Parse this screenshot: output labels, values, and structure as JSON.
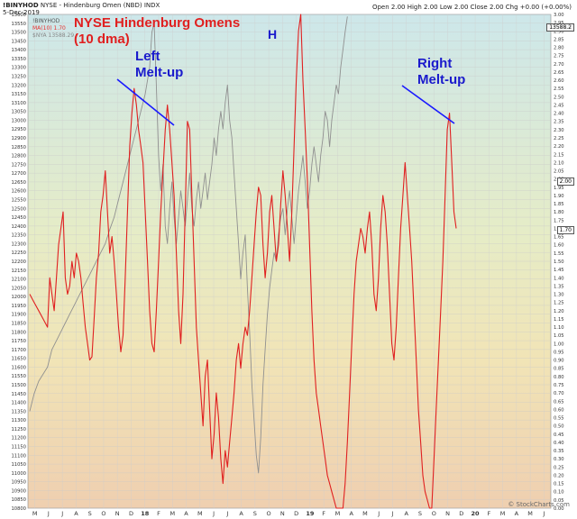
{
  "header": {
    "symbol": "!BINYHOD",
    "desc": "NYSE - Hindenburg Omen (NBD) INDX",
    "date": "5-Dec-2019",
    "ohlc": "Open 2.00  High 2.00  Low 2.00  Close 2.00  Chg +0.00 (+0.00%)",
    "watermark": "© StockCharts.com"
  },
  "legend": [
    {
      "text": "!BINYHOD",
      "color": "#555555"
    },
    {
      "text": "MA(10) 1.70",
      "color": "#e83030"
    },
    {
      "text": "$NYA 13588.29",
      "color": "#888888"
    }
  ],
  "tags": {
    "left_right": "13588.2",
    "right_2": "2.00",
    "right_170": "1.70"
  },
  "annotations": {
    "title": "NYSE Hindenburg Omens",
    "subtitle": "(10 dma)",
    "left_label_1": "Left",
    "left_label_2": "Melt-up",
    "h_label": "H",
    "right_label_1": "Right",
    "right_label_2": "Melt-up"
  },
  "chart_data": {
    "type": "line",
    "x_tick_labels": [
      "M",
      "J",
      "J",
      "A",
      "S",
      "O",
      "N",
      "D",
      "18",
      "F",
      "M",
      "A",
      "M",
      "J",
      "J",
      "A",
      "S",
      "O",
      "N",
      "D",
      "19",
      "F",
      "M",
      "A",
      "M",
      "J",
      "J",
      "A",
      "S",
      "O",
      "N",
      "D",
      "20",
      "F",
      "M",
      "A",
      "M",
      "J"
    ],
    "left_axis": {
      "min": 10800,
      "max": 13600,
      "step": 50
    },
    "right_axis": {
      "min": 0.0,
      "max": 3.0,
      "step": 0.05
    },
    "series": [
      {
        "name": "MA(10) 1.70",
        "color": "#e02020",
        "axis": "right",
        "points": [
          [
            0,
            1.3
          ],
          [
            2,
            1.25
          ],
          [
            4,
            1.2
          ],
          [
            6,
            1.15
          ],
          [
            8,
            1.1
          ],
          [
            9,
            1.4
          ],
          [
            10,
            1.3
          ],
          [
            11,
            1.2
          ],
          [
            12,
            1.4
          ],
          [
            13,
            1.6
          ],
          [
            14,
            1.7
          ],
          [
            15,
            1.8
          ],
          [
            16,
            1.4
          ],
          [
            17,
            1.3
          ],
          [
            18,
            1.35
          ],
          [
            19,
            1.5
          ],
          [
            20,
            1.4
          ],
          [
            21,
            1.55
          ],
          [
            22,
            1.5
          ],
          [
            23,
            1.4
          ],
          [
            24,
            1.25
          ],
          [
            25,
            1.1
          ],
          [
            26,
            1.0
          ],
          [
            27,
            0.9
          ],
          [
            28,
            0.92
          ],
          [
            29,
            1.15
          ],
          [
            30,
            1.4
          ],
          [
            31,
            1.55
          ],
          [
            32,
            1.8
          ],
          [
            33,
            1.9
          ],
          [
            34,
            2.05
          ],
          [
            35,
            1.8
          ],
          [
            36,
            1.55
          ],
          [
            37,
            1.65
          ],
          [
            38,
            1.5
          ],
          [
            39,
            1.3
          ],
          [
            40,
            1.1
          ],
          [
            41,
            0.95
          ],
          [
            42,
            1.05
          ],
          [
            43,
            1.4
          ],
          [
            44,
            1.8
          ],
          [
            45,
            2.2
          ],
          [
            46,
            2.4
          ],
          [
            47,
            2.55
          ],
          [
            48,
            2.45
          ],
          [
            49,
            2.3
          ],
          [
            50,
            2.2
          ],
          [
            51,
            2.1
          ],
          [
            52,
            1.8
          ],
          [
            53,
            1.5
          ],
          [
            54,
            1.2
          ],
          [
            55,
            1.0
          ],
          [
            56,
            0.95
          ],
          [
            57,
            1.2
          ],
          [
            58,
            1.5
          ],
          [
            59,
            1.8
          ],
          [
            60,
            2.05
          ],
          [
            61,
            2.3
          ],
          [
            62,
            2.45
          ],
          [
            63,
            2.3
          ],
          [
            64,
            2.1
          ],
          [
            65,
            1.9
          ],
          [
            66,
            1.55
          ],
          [
            67,
            1.2
          ],
          [
            68,
            1.0
          ],
          [
            69,
            1.3
          ],
          [
            70,
            1.8
          ],
          [
            71,
            2.35
          ],
          [
            72,
            2.3
          ],
          [
            73,
            1.9
          ],
          [
            74,
            1.5
          ],
          [
            75,
            1.1
          ],
          [
            76,
            0.9
          ],
          [
            77,
            0.7
          ],
          [
            78,
            0.5
          ],
          [
            79,
            0.8
          ],
          [
            80,
            0.9
          ],
          [
            81,
            0.6
          ],
          [
            82,
            0.3
          ],
          [
            83,
            0.45
          ],
          [
            84,
            0.7
          ],
          [
            85,
            0.55
          ],
          [
            86,
            0.3
          ],
          [
            87,
            0.15
          ],
          [
            88,
            0.35
          ],
          [
            89,
            0.25
          ],
          [
            90,
            0.4
          ],
          [
            91,
            0.55
          ],
          [
            92,
            0.7
          ],
          [
            93,
            0.9
          ],
          [
            94,
            1.0
          ],
          [
            95,
            0.85
          ],
          [
            96,
            1.0
          ],
          [
            97,
            1.1
          ],
          [
            98,
            1.05
          ],
          [
            99,
            1.2
          ],
          [
            100,
            1.4
          ],
          [
            101,
            1.6
          ],
          [
            102,
            1.8
          ],
          [
            103,
            1.95
          ],
          [
            104,
            1.9
          ],
          [
            105,
            1.6
          ],
          [
            106,
            1.4
          ],
          [
            107,
            1.55
          ],
          [
            108,
            1.8
          ],
          [
            109,
            1.9
          ],
          [
            110,
            1.7
          ],
          [
            111,
            1.5
          ],
          [
            112,
            1.6
          ],
          [
            113,
            1.85
          ],
          [
            114,
            2.05
          ],
          [
            115,
            1.9
          ],
          [
            116,
            1.7
          ],
          [
            117,
            1.5
          ],
          [
            118,
            1.8
          ],
          [
            119,
            2.2
          ],
          [
            120,
            2.6
          ],
          [
            121,
            2.9
          ],
          [
            122,
            3.0
          ],
          [
            123,
            2.6
          ],
          [
            124,
            2.3
          ],
          [
            125,
            2.0
          ],
          [
            126,
            1.6
          ],
          [
            127,
            1.2
          ],
          [
            128,
            0.9
          ],
          [
            129,
            0.7
          ],
          [
            130,
            0.6
          ],
          [
            131,
            0.5
          ],
          [
            132,
            0.4
          ],
          [
            133,
            0.3
          ],
          [
            134,
            0.2
          ],
          [
            135,
            0.15
          ],
          [
            136,
            0.1
          ],
          [
            137,
            0.05
          ],
          [
            138,
            0.0
          ],
          [
            139,
            0.0
          ],
          [
            140,
            0.0
          ],
          [
            141,
            0.0
          ],
          [
            142,
            0.15
          ],
          [
            143,
            0.4
          ],
          [
            144,
            0.7
          ],
          [
            145,
            1.0
          ],
          [
            146,
            1.3
          ],
          [
            147,
            1.5
          ],
          [
            148,
            1.6
          ],
          [
            149,
            1.7
          ],
          [
            150,
            1.65
          ],
          [
            151,
            1.55
          ],
          [
            152,
            1.7
          ],
          [
            153,
            1.8
          ],
          [
            154,
            1.6
          ],
          [
            155,
            1.3
          ],
          [
            156,
            1.2
          ],
          [
            157,
            1.4
          ],
          [
            158,
            1.7
          ],
          [
            159,
            1.9
          ],
          [
            160,
            1.8
          ],
          [
            161,
            1.6
          ],
          [
            162,
            1.3
          ],
          [
            163,
            1.0
          ],
          [
            164,
            0.9
          ],
          [
            165,
            1.1
          ],
          [
            166,
            1.4
          ],
          [
            167,
            1.7
          ],
          [
            168,
            1.9
          ],
          [
            169,
            2.1
          ],
          [
            170,
            1.9
          ],
          [
            171,
            1.7
          ],
          [
            172,
            1.5
          ],
          [
            173,
            1.2
          ],
          [
            174,
            0.9
          ],
          [
            175,
            0.6
          ],
          [
            176,
            0.4
          ],
          [
            177,
            0.2
          ],
          [
            178,
            0.1
          ],
          [
            179,
            0.05
          ],
          [
            180,
            0.0
          ],
          [
            181,
            0.0
          ],
          [
            182,
            0.3
          ],
          [
            183,
            0.6
          ],
          [
            184,
            0.9
          ],
          [
            185,
            1.2
          ],
          [
            186,
            1.5
          ],
          [
            187,
            1.9
          ],
          [
            188,
            2.3
          ],
          [
            189,
            2.4
          ],
          [
            190,
            2.1
          ],
          [
            191,
            1.8
          ],
          [
            192,
            1.7
          ]
        ]
      },
      {
        "name": "$NYA 13588.29",
        "color": "#909090",
        "axis": "left",
        "points": [
          [
            0,
            11350
          ],
          [
            2,
            11450
          ],
          [
            4,
            11520
          ],
          [
            6,
            11560
          ],
          [
            8,
            11600
          ],
          [
            10,
            11700
          ],
          [
            12,
            11750
          ],
          [
            14,
            11800
          ],
          [
            16,
            11850
          ],
          [
            18,
            11900
          ],
          [
            20,
            11950
          ],
          [
            22,
            12000
          ],
          [
            24,
            12050
          ],
          [
            26,
            12100
          ],
          [
            28,
            12150
          ],
          [
            30,
            12200
          ],
          [
            32,
            12250
          ],
          [
            34,
            12300
          ],
          [
            36,
            12380
          ],
          [
            38,
            12450
          ],
          [
            40,
            12550
          ],
          [
            42,
            12650
          ],
          [
            44,
            12750
          ],
          [
            46,
            12850
          ],
          [
            48,
            12950
          ],
          [
            50,
            13050
          ],
          [
            52,
            13150
          ],
          [
            54,
            13300
          ],
          [
            55,
            13500
          ],
          [
            56,
            13550
          ],
          [
            57,
            13200
          ],
          [
            58,
            12800
          ],
          [
            59,
            12600
          ],
          [
            60,
            12750
          ],
          [
            61,
            12400
          ],
          [
            62,
            12300
          ],
          [
            63,
            12500
          ],
          [
            64,
            12650
          ],
          [
            65,
            12450
          ],
          [
            66,
            12300
          ],
          [
            67,
            12450
          ],
          [
            68,
            12600
          ],
          [
            69,
            12500
          ],
          [
            70,
            12400
          ],
          [
            71,
            12550
          ],
          [
            72,
            12700
          ],
          [
            73,
            12500
          ],
          [
            74,
            12400
          ],
          [
            75,
            12550
          ],
          [
            76,
            12650
          ],
          [
            77,
            12500
          ],
          [
            78,
            12600
          ],
          [
            79,
            12700
          ],
          [
            80,
            12550
          ],
          [
            81,
            12650
          ],
          [
            82,
            12750
          ],
          [
            83,
            12900
          ],
          [
            84,
            12800
          ],
          [
            85,
            12950
          ],
          [
            86,
            13050
          ],
          [
            87,
            12950
          ],
          [
            88,
            13100
          ],
          [
            89,
            13200
          ],
          [
            90,
            13000
          ],
          [
            91,
            12900
          ],
          [
            92,
            12700
          ],
          [
            93,
            12500
          ],
          [
            94,
            12300
          ],
          [
            95,
            12100
          ],
          [
            96,
            12250
          ],
          [
            97,
            12350
          ],
          [
            98,
            12050
          ],
          [
            99,
            11800
          ],
          [
            100,
            11500
          ],
          [
            101,
            11300
          ],
          [
            102,
            11100
          ],
          [
            103,
            11000
          ],
          [
            104,
            11200
          ],
          [
            105,
            11500
          ],
          [
            106,
            11700
          ],
          [
            107,
            11900
          ],
          [
            108,
            12050
          ],
          [
            109,
            12150
          ],
          [
            110,
            12250
          ],
          [
            111,
            12200
          ],
          [
            112,
            12350
          ],
          [
            113,
            12450
          ],
          [
            114,
            12500
          ],
          [
            115,
            12350
          ],
          [
            116,
            12500
          ],
          [
            117,
            12600
          ],
          [
            118,
            12450
          ],
          [
            119,
            12300
          ],
          [
            120,
            12450
          ],
          [
            121,
            12600
          ],
          [
            122,
            12700
          ],
          [
            123,
            12800
          ],
          [
            124,
            12650
          ],
          [
            125,
            12500
          ],
          [
            126,
            12600
          ],
          [
            127,
            12750
          ],
          [
            128,
            12850
          ],
          [
            129,
            12750
          ],
          [
            130,
            12650
          ],
          [
            131,
            12800
          ],
          [
            132,
            12900
          ],
          [
            133,
            13050
          ],
          [
            134,
            13000
          ],
          [
            135,
            12850
          ],
          [
            136,
            13000
          ],
          [
            137,
            13100
          ],
          [
            138,
            13200
          ],
          [
            139,
            13150
          ],
          [
            140,
            13300
          ],
          [
            141,
            13400
          ],
          [
            142,
            13500
          ],
          [
            143,
            13588
          ]
        ]
      }
    ]
  }
}
